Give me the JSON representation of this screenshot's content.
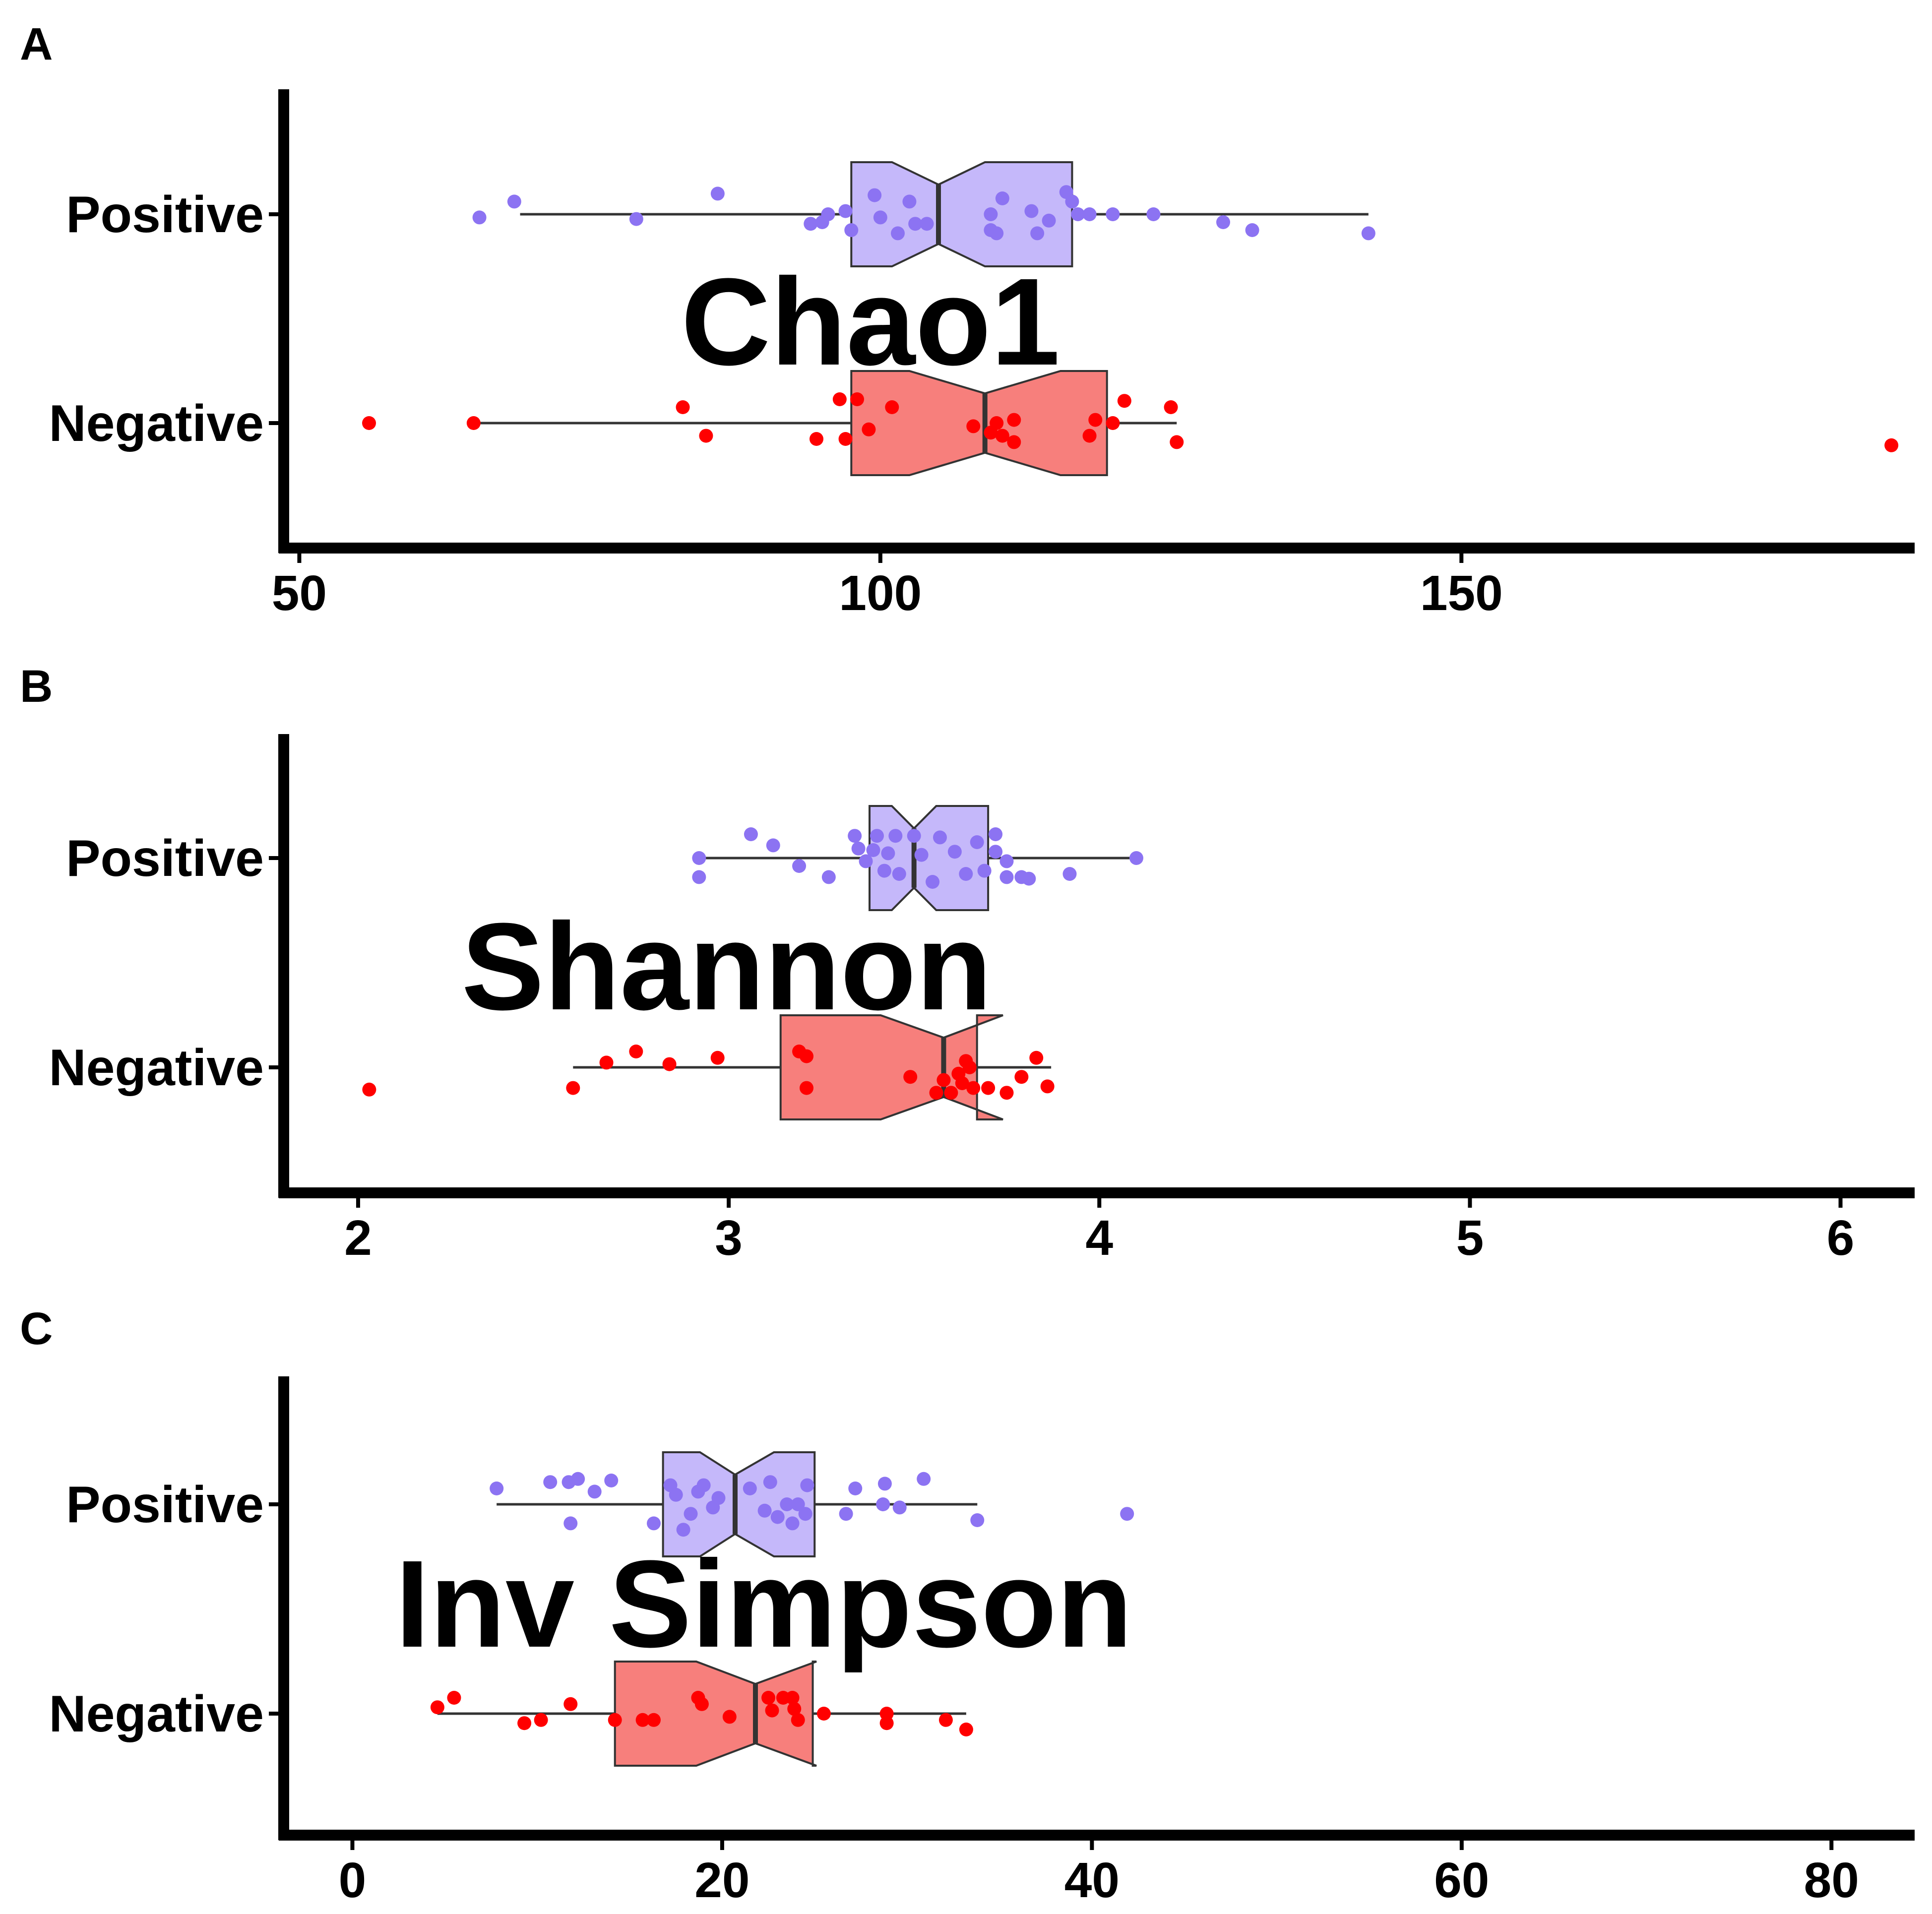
{
  "colors": {
    "positive_fill": "#c5b8fa",
    "positive_point": "#8c73f2",
    "negative_fill": "#f77f7c",
    "negative_point": "#ff0000",
    "axis": "#000000",
    "box_stroke": "#333333"
  },
  "chart_data": [
    {
      "panel": "A",
      "type": "boxplot",
      "orientation": "horizontal",
      "title": "Chao1",
      "categories": [
        "Positive",
        "Negative"
      ],
      "xlim": [
        49,
        189
      ],
      "xticks": [
        50,
        100,
        150
      ],
      "series": [
        {
          "name": "Positive",
          "whisker_low": 69,
          "q1": 97.5,
          "median": 105,
          "q3": 116.5,
          "whisker_high": 142,
          "notch_low": 101,
          "notch_high": 109,
          "points": [
            {
              "x": 65.5,
              "j": -0.02
            },
            {
              "x": 68.5,
              "j": 0.08
            },
            {
              "x": 79,
              "j": -0.03
            },
            {
              "x": 86,
              "j": 0.13
            },
            {
              "x": 94,
              "j": -0.06
            },
            {
              "x": 95.5,
              "j": 0.0
            },
            {
              "x": 95,
              "j": -0.05
            },
            {
              "x": 97,
              "j": 0.02
            },
            {
              "x": 97.5,
              "j": -0.1
            },
            {
              "x": 99.5,
              "j": 0.12
            },
            {
              "x": 100,
              "j": -0.02
            },
            {
              "x": 101.5,
              "j": -0.12
            },
            {
              "x": 102.5,
              "j": 0.08
            },
            {
              "x": 103,
              "j": -0.06
            },
            {
              "x": 104,
              "j": -0.06
            },
            {
              "x": 109.5,
              "j": 0.0
            },
            {
              "x": 109.5,
              "j": -0.1
            },
            {
              "x": 110,
              "j": -0.12
            },
            {
              "x": 110.5,
              "j": 0.1
            },
            {
              "x": 113,
              "j": 0.02
            },
            {
              "x": 113.5,
              "j": -0.12
            },
            {
              "x": 114.5,
              "j": -0.04
            },
            {
              "x": 116,
              "j": 0.14
            },
            {
              "x": 116.5,
              "j": 0.08
            },
            {
              "x": 117,
              "j": 0.0
            },
            {
              "x": 118,
              "j": 0.0
            },
            {
              "x": 120,
              "j": 0.0
            },
            {
              "x": 123.5,
              "j": 0.0
            },
            {
              "x": 129.5,
              "j": -0.05
            },
            {
              "x": 132,
              "j": -0.1
            },
            {
              "x": 142,
              "j": -0.12
            }
          ]
        },
        {
          "name": "Negative",
          "whisker_low": 65,
          "q1": 97.5,
          "median": 109,
          "q3": 119.5,
          "whisker_high": 125.5,
          "notch_low": 102.5,
          "notch_high": 115.5,
          "points": [
            {
              "x": 56,
              "j": 0.0
            },
            {
              "x": 65,
              "j": 0.0
            },
            {
              "x": 83,
              "j": 0.1
            },
            {
              "x": 85,
              "j": -0.08
            },
            {
              "x": 94.5,
              "j": -0.1
            },
            {
              "x": 96.5,
              "j": 0.15
            },
            {
              "x": 97,
              "j": -0.1
            },
            {
              "x": 98,
              "j": 0.15
            },
            {
              "x": 99,
              "j": -0.04
            },
            {
              "x": 101,
              "j": 0.1
            },
            {
              "x": 108,
              "j": -0.02
            },
            {
              "x": 109.5,
              "j": -0.06
            },
            {
              "x": 110,
              "j": 0.0
            },
            {
              "x": 110.5,
              "j": -0.08
            },
            {
              "x": 111.5,
              "j": 0.02
            },
            {
              "x": 111.5,
              "j": -0.12
            },
            {
              "x": 118,
              "j": -0.08
            },
            {
              "x": 118.5,
              "j": 0.02
            },
            {
              "x": 120,
              "j": 0.0
            },
            {
              "x": 121,
              "j": 0.14
            },
            {
              "x": 125,
              "j": 0.1
            },
            {
              "x": 125.5,
              "j": -0.12
            },
            {
              "x": 187,
              "j": -0.14
            }
          ]
        }
      ]
    },
    {
      "panel": "B",
      "type": "boxplot",
      "orientation": "horizontal",
      "title": "Shannon",
      "categories": [
        "Positive",
        "Negative"
      ],
      "xlim": [
        1.81,
        6.2
      ],
      "xticks": [
        2,
        3,
        4,
        5,
        6
      ],
      "series": [
        {
          "name": "Positive",
          "whisker_low": 2.92,
          "q1": 3.38,
          "median": 3.5,
          "q3": 3.7,
          "whisker_high": 4.1,
          "notch_low": 3.44,
          "notch_high": 3.56,
          "points": [
            {
              "x": 2.92,
              "j": 0.0
            },
            {
              "x": 2.92,
              "j": -0.12
            },
            {
              "x": 3.06,
              "j": 0.15
            },
            {
              "x": 3.12,
              "j": 0.08
            },
            {
              "x": 3.19,
              "j": -0.05
            },
            {
              "x": 3.27,
              "j": -0.12
            },
            {
              "x": 3.34,
              "j": 0.14
            },
            {
              "x": 3.35,
              "j": 0.06
            },
            {
              "x": 3.37,
              "j": -0.02
            },
            {
              "x": 3.39,
              "j": 0.05
            },
            {
              "x": 3.4,
              "j": 0.14
            },
            {
              "x": 3.42,
              "j": -0.08
            },
            {
              "x": 3.43,
              "j": 0.03
            },
            {
              "x": 3.45,
              "j": 0.14
            },
            {
              "x": 3.46,
              "j": -0.1
            },
            {
              "x": 3.5,
              "j": 0.14
            },
            {
              "x": 3.52,
              "j": 0.02
            },
            {
              "x": 3.55,
              "j": -0.15
            },
            {
              "x": 3.57,
              "j": 0.13
            },
            {
              "x": 3.61,
              "j": 0.04
            },
            {
              "x": 3.64,
              "j": -0.1
            },
            {
              "x": 3.67,
              "j": 0.1
            },
            {
              "x": 3.69,
              "j": -0.08
            },
            {
              "x": 3.72,
              "j": 0.15
            },
            {
              "x": 3.72,
              "j": 0.04
            },
            {
              "x": 3.75,
              "j": -0.02
            },
            {
              "x": 3.75,
              "j": -0.12
            },
            {
              "x": 3.79,
              "j": -0.12
            },
            {
              "x": 3.81,
              "j": -0.13
            },
            {
              "x": 3.92,
              "j": -0.1
            },
            {
              "x": 4.1,
              "j": 0.0
            }
          ]
        },
        {
          "name": "Negative",
          "whisker_low": 2.58,
          "q1": 3.14,
          "median": 3.58,
          "q3": 3.67,
          "whisker_high": 3.87,
          "notch_low": 3.41,
          "notch_high": 3.74,
          "points": [
            {
              "x": 2.03,
              "j": -0.14
            },
            {
              "x": 2.58,
              "j": -0.13
            },
            {
              "x": 2.67,
              "j": 0.03
            },
            {
              "x": 2.75,
              "j": 0.1
            },
            {
              "x": 2.84,
              "j": 0.02
            },
            {
              "x": 2.97,
              "j": 0.06
            },
            {
              "x": 3.19,
              "j": 0.1
            },
            {
              "x": 3.21,
              "j": 0.07
            },
            {
              "x": 3.21,
              "j": -0.13
            },
            {
              "x": 3.49,
              "j": -0.06
            },
            {
              "x": 3.56,
              "j": -0.16
            },
            {
              "x": 3.58,
              "j": -0.08
            },
            {
              "x": 3.6,
              "j": -0.16
            },
            {
              "x": 3.62,
              "j": -0.04
            },
            {
              "x": 3.63,
              "j": -0.1
            },
            {
              "x": 3.64,
              "j": 0.04
            },
            {
              "x": 3.65,
              "j": 0.0
            },
            {
              "x": 3.66,
              "j": -0.13
            },
            {
              "x": 3.7,
              "j": -0.13
            },
            {
              "x": 3.75,
              "j": -0.16
            },
            {
              "x": 3.79,
              "j": -0.06
            },
            {
              "x": 3.83,
              "j": 0.06
            },
            {
              "x": 3.86,
              "j": -0.12
            }
          ]
        }
      ]
    },
    {
      "panel": "C",
      "type": "boxplot",
      "orientation": "horizontal",
      "title": "Inv Simpson",
      "categories": [
        "Positive",
        "Negative"
      ],
      "xlim": [
        -3.5,
        84.5
      ],
      "xticks": [
        0,
        20,
        40,
        60,
        80
      ],
      "series": [
        {
          "name": "Positive",
          "whisker_low": 7.8,
          "q1": 16.8,
          "median": 20.7,
          "q3": 25,
          "whisker_high": 33.8,
          "notch_low": 18.8,
          "notch_high": 22.8,
          "points": [
            {
              "x": 7.8,
              "j": 0.1
            },
            {
              "x": 10.7,
              "j": 0.14
            },
            {
              "x": 11.7,
              "j": 0.14
            },
            {
              "x": 11.8,
              "j": -0.12
            },
            {
              "x": 12.2,
              "j": 0.16
            },
            {
              "x": 13.1,
              "j": 0.08
            },
            {
              "x": 14,
              "j": 0.15
            },
            {
              "x": 16.3,
              "j": -0.12
            },
            {
              "x": 17.2,
              "j": 0.12
            },
            {
              "x": 17.5,
              "j": 0.06
            },
            {
              "x": 17.9,
              "j": -0.16
            },
            {
              "x": 18.3,
              "j": -0.06
            },
            {
              "x": 18.7,
              "j": 0.08
            },
            {
              "x": 19,
              "j": 0.12
            },
            {
              "x": 19.5,
              "j": -0.02
            },
            {
              "x": 19.8,
              "j": 0.04
            },
            {
              "x": 21.5,
              "j": 0.1
            },
            {
              "x": 22.3,
              "j": -0.04
            },
            {
              "x": 22.6,
              "j": 0.14
            },
            {
              "x": 23,
              "j": -0.08
            },
            {
              "x": 23.5,
              "j": 0.0
            },
            {
              "x": 23.8,
              "j": -0.12
            },
            {
              "x": 24.1,
              "j": 0.0
            },
            {
              "x": 24.5,
              "j": -0.06
            },
            {
              "x": 24.6,
              "j": 0.12
            },
            {
              "x": 26.7,
              "j": -0.06
            },
            {
              "x": 27.2,
              "j": 0.1
            },
            {
              "x": 28.7,
              "j": 0.0
            },
            {
              "x": 28.8,
              "j": 0.13
            },
            {
              "x": 29.6,
              "j": -0.02
            },
            {
              "x": 30.9,
              "j": 0.16
            },
            {
              "x": 33.8,
              "j": -0.1
            },
            {
              "x": 41.9,
              "j": -0.06
            }
          ]
        },
        {
          "name": "Negative",
          "whisker_low": 4.6,
          "q1": 14.2,
          "median": 21.8,
          "q3": 24.9,
          "whisker_high": 33.2,
          "notch_low": 18.6,
          "notch_high": 25.1,
          "points": [
            {
              "x": 4.6,
              "j": 0.04
            },
            {
              "x": 5.5,
              "j": 0.1
            },
            {
              "x": 9.3,
              "j": -0.06
            },
            {
              "x": 10.2,
              "j": -0.04
            },
            {
              "x": 11.8,
              "j": 0.06
            },
            {
              "x": 14.2,
              "j": -0.04
            },
            {
              "x": 15.7,
              "j": -0.04
            },
            {
              "x": 16.3,
              "j": -0.04
            },
            {
              "x": 18.7,
              "j": 0.1
            },
            {
              "x": 18.9,
              "j": 0.06
            },
            {
              "x": 20.4,
              "j": -0.02
            },
            {
              "x": 22.5,
              "j": 0.1
            },
            {
              "x": 22.7,
              "j": 0.02
            },
            {
              "x": 23.3,
              "j": 0.1
            },
            {
              "x": 23.8,
              "j": 0.1
            },
            {
              "x": 23.9,
              "j": 0.03
            },
            {
              "x": 24.1,
              "j": -0.04
            },
            {
              "x": 25.5,
              "j": 0.0
            },
            {
              "x": 28.9,
              "j": -0.06
            },
            {
              "x": 28.9,
              "j": 0.0
            },
            {
              "x": 32.1,
              "j": -0.04
            },
            {
              "x": 33.2,
              "j": -0.1
            }
          ]
        }
      ]
    }
  ]
}
